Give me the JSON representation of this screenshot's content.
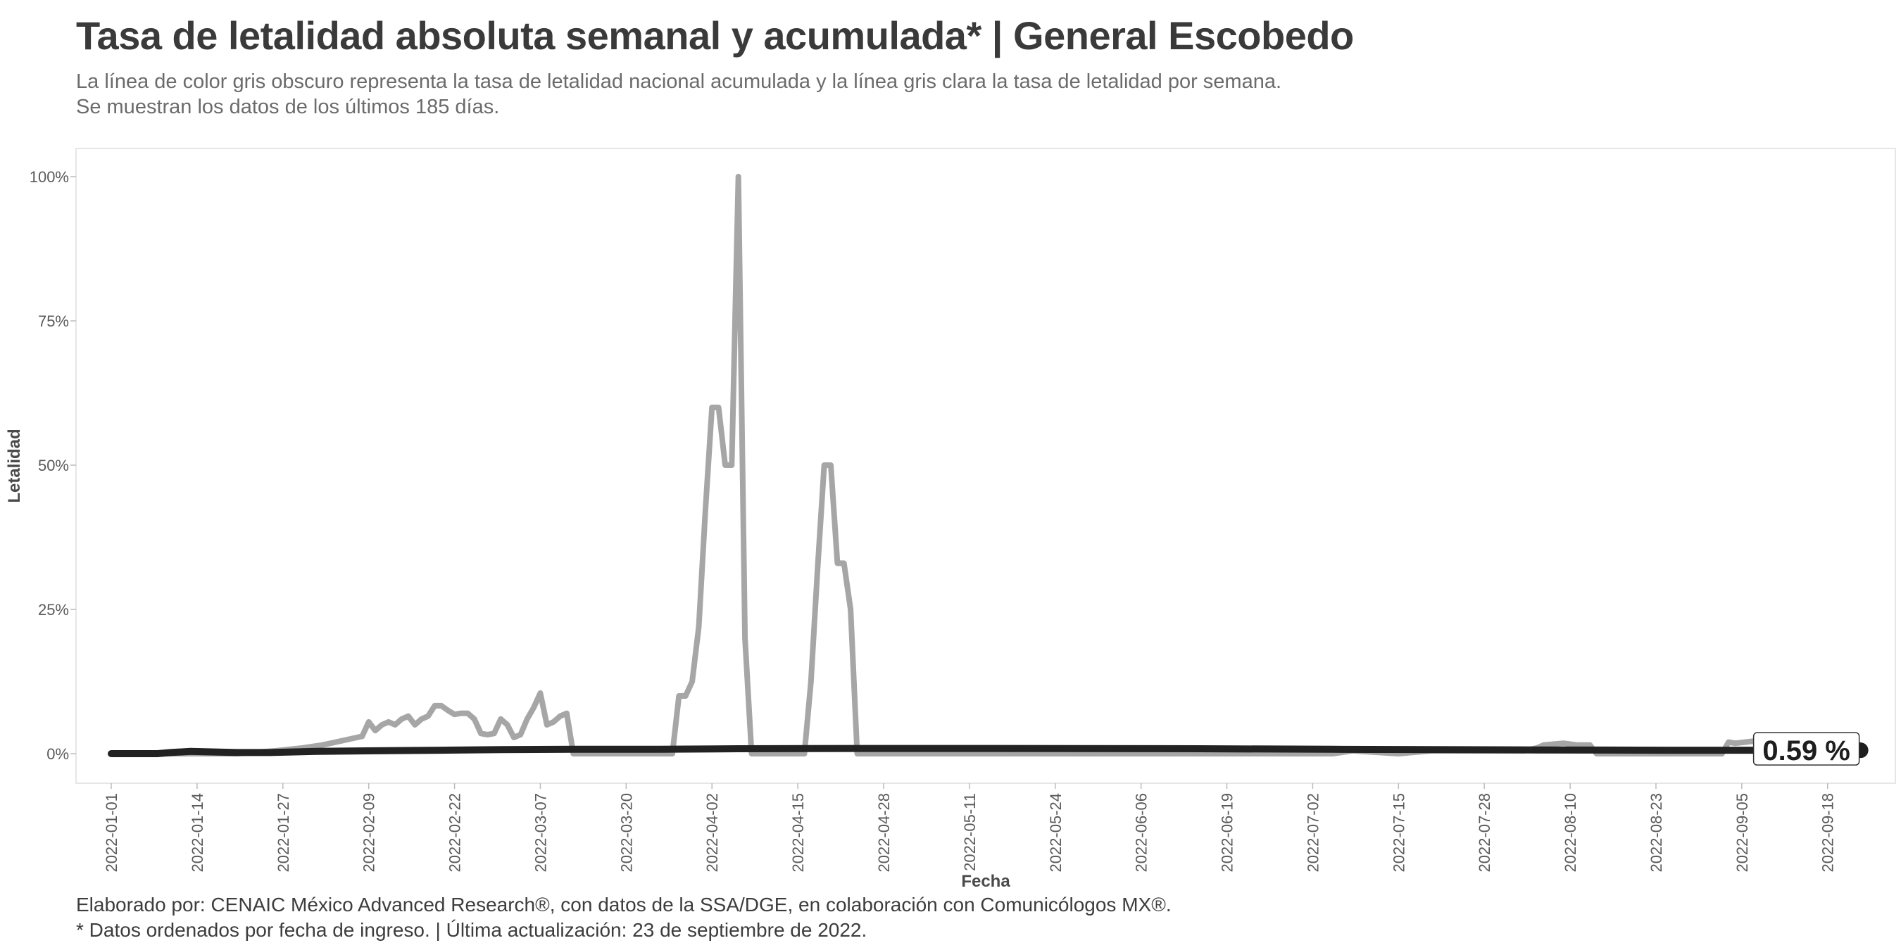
{
  "header": {
    "title": "Tasa de letalidad absoluta semanal y acumulada* | General Escobedo",
    "subtitle_line1": "La línea de color gris obscuro representa la tasa de letalidad nacional acumulada y la línea gris clara la tasa de letalidad por semana.",
    "subtitle_line2": "Se muestran los datos de los últimos 185 días."
  },
  "footer": {
    "caption_line1": "Elaborado por: CENAIC México Advanced Research®, con datos de la SSA/DGE, en colaboración con Comunicólogos MX®.",
    "caption_line2": "* Datos ordenados por fecha de ingreso. | Última actualización: 23 de septiembre de 2022."
  },
  "chart_data": {
    "type": "line",
    "xlabel": "Fecha",
    "ylabel": "Letalidad",
    "x_start": "2022-01-01",
    "x_end": "2022-09-24",
    "ylim": [
      -5,
      105
    ],
    "y_ticks": [
      0,
      25,
      50,
      75,
      100
    ],
    "y_tick_labels": [
      "0%",
      "25%",
      "50%",
      "75%",
      "100%"
    ],
    "x_ticks": [
      "2022-01-01",
      "2022-01-14",
      "2022-01-27",
      "2022-02-09",
      "2022-02-22",
      "2022-03-07",
      "2022-03-20",
      "2022-04-02",
      "2022-04-15",
      "2022-04-28",
      "2022-05-11",
      "2022-05-24",
      "2022-06-06",
      "2022-06-19",
      "2022-07-02",
      "2022-07-15",
      "2022-07-28",
      "2022-08-10",
      "2022-08-23",
      "2022-09-05",
      "2022-09-18"
    ],
    "grid": false,
    "series": [
      {
        "color": "#a6a6a6",
        "points": [
          [
            "2022-01-01",
            0
          ],
          [
            "2022-01-20",
            0
          ],
          [
            "2022-01-26",
            0.5
          ],
          [
            "2022-01-30",
            1
          ],
          [
            "2022-02-02",
            1.5
          ],
          [
            "2022-02-04",
            2
          ],
          [
            "2022-02-06",
            2.5
          ],
          [
            "2022-02-08",
            3
          ],
          [
            "2022-02-09",
            5.5
          ],
          [
            "2022-02-10",
            4
          ],
          [
            "2022-02-11",
            5
          ],
          [
            "2022-02-12",
            5.5
          ],
          [
            "2022-02-13",
            5
          ],
          [
            "2022-02-14",
            6
          ],
          [
            "2022-02-15",
            6.5
          ],
          [
            "2022-02-16",
            5
          ],
          [
            "2022-02-17",
            6
          ],
          [
            "2022-02-18",
            6.5
          ],
          [
            "2022-02-19",
            8.3
          ],
          [
            "2022-02-20",
            8.3
          ],
          [
            "2022-02-21",
            7.5
          ],
          [
            "2022-02-22",
            6.8
          ],
          [
            "2022-02-23",
            7
          ],
          [
            "2022-02-24",
            7
          ],
          [
            "2022-02-25",
            6
          ],
          [
            "2022-02-26",
            3.5
          ],
          [
            "2022-02-27",
            3.3
          ],
          [
            "2022-02-28",
            3.5
          ],
          [
            "2022-03-01",
            6
          ],
          [
            "2022-03-02",
            5
          ],
          [
            "2022-03-03",
            2.8
          ],
          [
            "2022-03-04",
            3.3
          ],
          [
            "2022-03-05",
            6
          ],
          [
            "2022-03-06",
            8
          ],
          [
            "2022-03-07",
            10.5
          ],
          [
            "2022-03-08",
            5
          ],
          [
            "2022-03-09",
            5.5
          ],
          [
            "2022-03-10",
            6.5
          ],
          [
            "2022-03-11",
            7
          ],
          [
            "2022-03-12",
            0
          ],
          [
            "2022-03-27",
            0
          ],
          [
            "2022-03-28",
            10
          ],
          [
            "2022-03-29",
            10
          ],
          [
            "2022-03-30",
            12.5
          ],
          [
            "2022-03-31",
            22
          ],
          [
            "2022-04-01",
            42
          ],
          [
            "2022-04-02",
            60
          ],
          [
            "2022-04-03",
            60
          ],
          [
            "2022-04-04",
            50
          ],
          [
            "2022-04-05",
            50
          ],
          [
            "2022-04-06",
            100
          ],
          [
            "2022-04-07",
            20
          ],
          [
            "2022-04-08",
            0
          ],
          [
            "2022-04-16",
            0
          ],
          [
            "2022-04-17",
            12.5
          ],
          [
            "2022-04-18",
            32
          ],
          [
            "2022-04-19",
            50
          ],
          [
            "2022-04-20",
            50
          ],
          [
            "2022-04-21",
            33
          ],
          [
            "2022-04-22",
            33
          ],
          [
            "2022-04-23",
            25
          ],
          [
            "2022-04-24",
            0
          ],
          [
            "2022-07-05",
            0
          ],
          [
            "2022-07-08",
            0.5
          ],
          [
            "2022-07-15",
            0
          ],
          [
            "2022-07-20",
            0.5
          ],
          [
            "2022-07-30",
            0.5
          ],
          [
            "2022-08-03",
            0.5
          ],
          [
            "2022-08-05",
            1
          ],
          [
            "2022-08-06",
            1.5
          ],
          [
            "2022-08-09",
            1.8
          ],
          [
            "2022-08-11",
            1.5
          ],
          [
            "2022-08-13",
            1.5
          ],
          [
            "2022-08-14",
            0
          ],
          [
            "2022-09-02",
            0
          ],
          [
            "2022-09-03",
            2
          ],
          [
            "2022-09-04",
            1.8
          ],
          [
            "2022-09-07",
            2.2
          ],
          [
            "2022-09-09",
            2.5
          ],
          [
            "2022-09-12",
            2.8
          ],
          [
            "2022-09-16",
            2.5
          ],
          [
            "2022-09-20",
            2
          ],
          [
            "2022-09-23",
            1.5
          ]
        ]
      },
      {
        "color": "#222222",
        "points": [
          [
            "2022-01-01",
            0
          ],
          [
            "2022-01-08",
            0
          ],
          [
            "2022-01-10",
            0.2
          ],
          [
            "2022-01-13",
            0.4
          ],
          [
            "2022-01-20",
            0.2
          ],
          [
            "2022-01-25",
            0.2
          ],
          [
            "2022-02-01",
            0.4
          ],
          [
            "2022-02-10",
            0.5
          ],
          [
            "2022-02-20",
            0.6
          ],
          [
            "2022-03-01",
            0.7
          ],
          [
            "2022-03-12",
            0.75
          ],
          [
            "2022-03-25",
            0.75
          ],
          [
            "2022-04-06",
            0.85
          ],
          [
            "2022-04-24",
            0.9
          ],
          [
            "2022-05-15",
            0.9
          ],
          [
            "2022-06-15",
            0.85
          ],
          [
            "2022-07-05",
            0.75
          ],
          [
            "2022-07-20",
            0.7
          ],
          [
            "2022-08-05",
            0.65
          ],
          [
            "2022-08-25",
            0.6
          ],
          [
            "2022-09-10",
            0.6
          ],
          [
            "2022-09-23",
            0.59
          ]
        ],
        "end_label": "0.59 %"
      }
    ]
  }
}
